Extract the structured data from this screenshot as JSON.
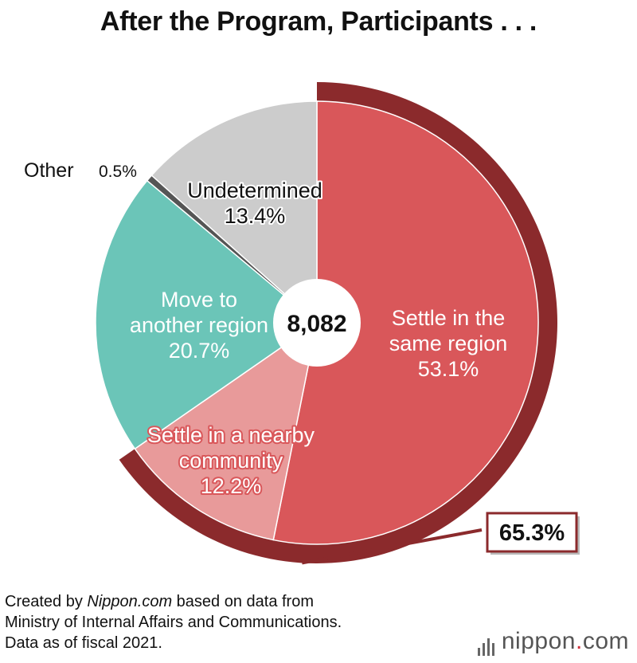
{
  "title": "After the Program, Participants . . .",
  "source": {
    "prefix": "Created by ",
    "site": "Nippon.com",
    "suffix": " based on data from",
    "line2": "Ministry of Internal Affairs and Communications.",
    "line3": "Data as of fiscal 2021."
  },
  "brand": {
    "name": "nippon",
    "dot": ".",
    "tld": "com"
  },
  "chart_data": {
    "type": "pie",
    "total_label": "8,082",
    "slices": [
      {
        "label_lines": [
          "Settle in the",
          "same region"
        ],
        "value": 53.1,
        "value_label": "53.1%",
        "color": "#d9575a"
      },
      {
        "label_lines": [
          "Settle in a nearby",
          "community"
        ],
        "value": 12.2,
        "value_label": "12.2%",
        "color": "#e89a9a"
      },
      {
        "label_lines": [
          "Move to",
          "another region"
        ],
        "value": 20.7,
        "value_label": "20.7%",
        "color": "#6bc5b8"
      },
      {
        "label_lines": [
          "Other"
        ],
        "value": 0.5,
        "value_label": "0.5%",
        "color": "#555555"
      },
      {
        "label_lines": [
          "Undetermined"
        ],
        "value": 13.4,
        "value_label": "13.4%",
        "color": "#cccccc"
      }
    ],
    "highlight": {
      "value": 65.3,
      "label": "65.3%",
      "color": "#8b2a2c"
    }
  }
}
